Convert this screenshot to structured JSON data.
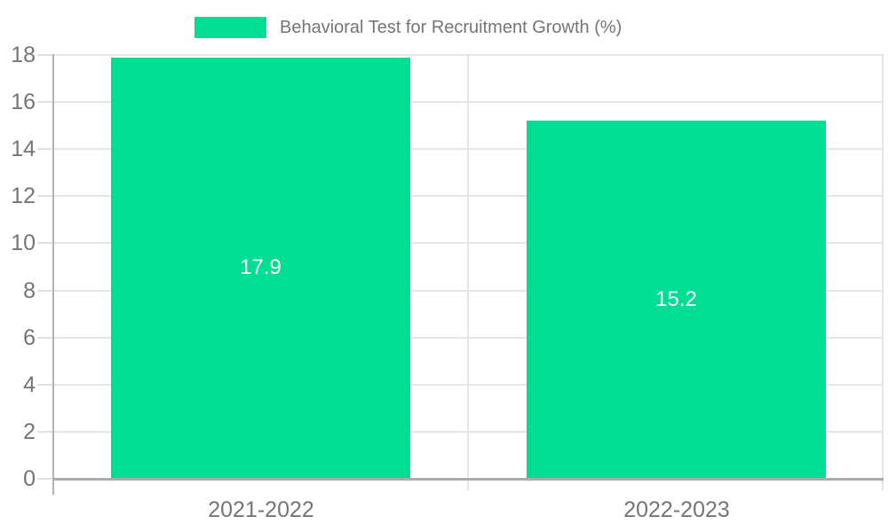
{
  "chart_data": {
    "type": "bar",
    "title": "Behavioral Test for Recruitment Growth (%)",
    "categories": [
      "2021-2022",
      "2022-2023"
    ],
    "series": [
      {
        "name": "Behavioral Test for Recruitment Growth (%)",
        "values": [
          17.9,
          15.2
        ],
        "value_labels": [
          "17.9",
          "15.2"
        ],
        "color": "#00DE94"
      }
    ],
    "xlabel": "",
    "ylabel": "",
    "ylim": [
      0,
      18
    ],
    "yticks": [
      0,
      2,
      4,
      6,
      8,
      10,
      12,
      14,
      16,
      18
    ],
    "grid": true,
    "legend_position": "top",
    "value_label_position": "inside-center"
  },
  "colors": {
    "bar": "#00DE94",
    "axis_text": "#757575",
    "legend_text": "#757575",
    "gridline": "#E6E6E6",
    "tick": "#E0E0E0",
    "y_axis_line": "#B3B3B3",
    "baseline": "#ABABAB",
    "value_label": "#FFFFFF",
    "background": "#FFFFFF"
  }
}
